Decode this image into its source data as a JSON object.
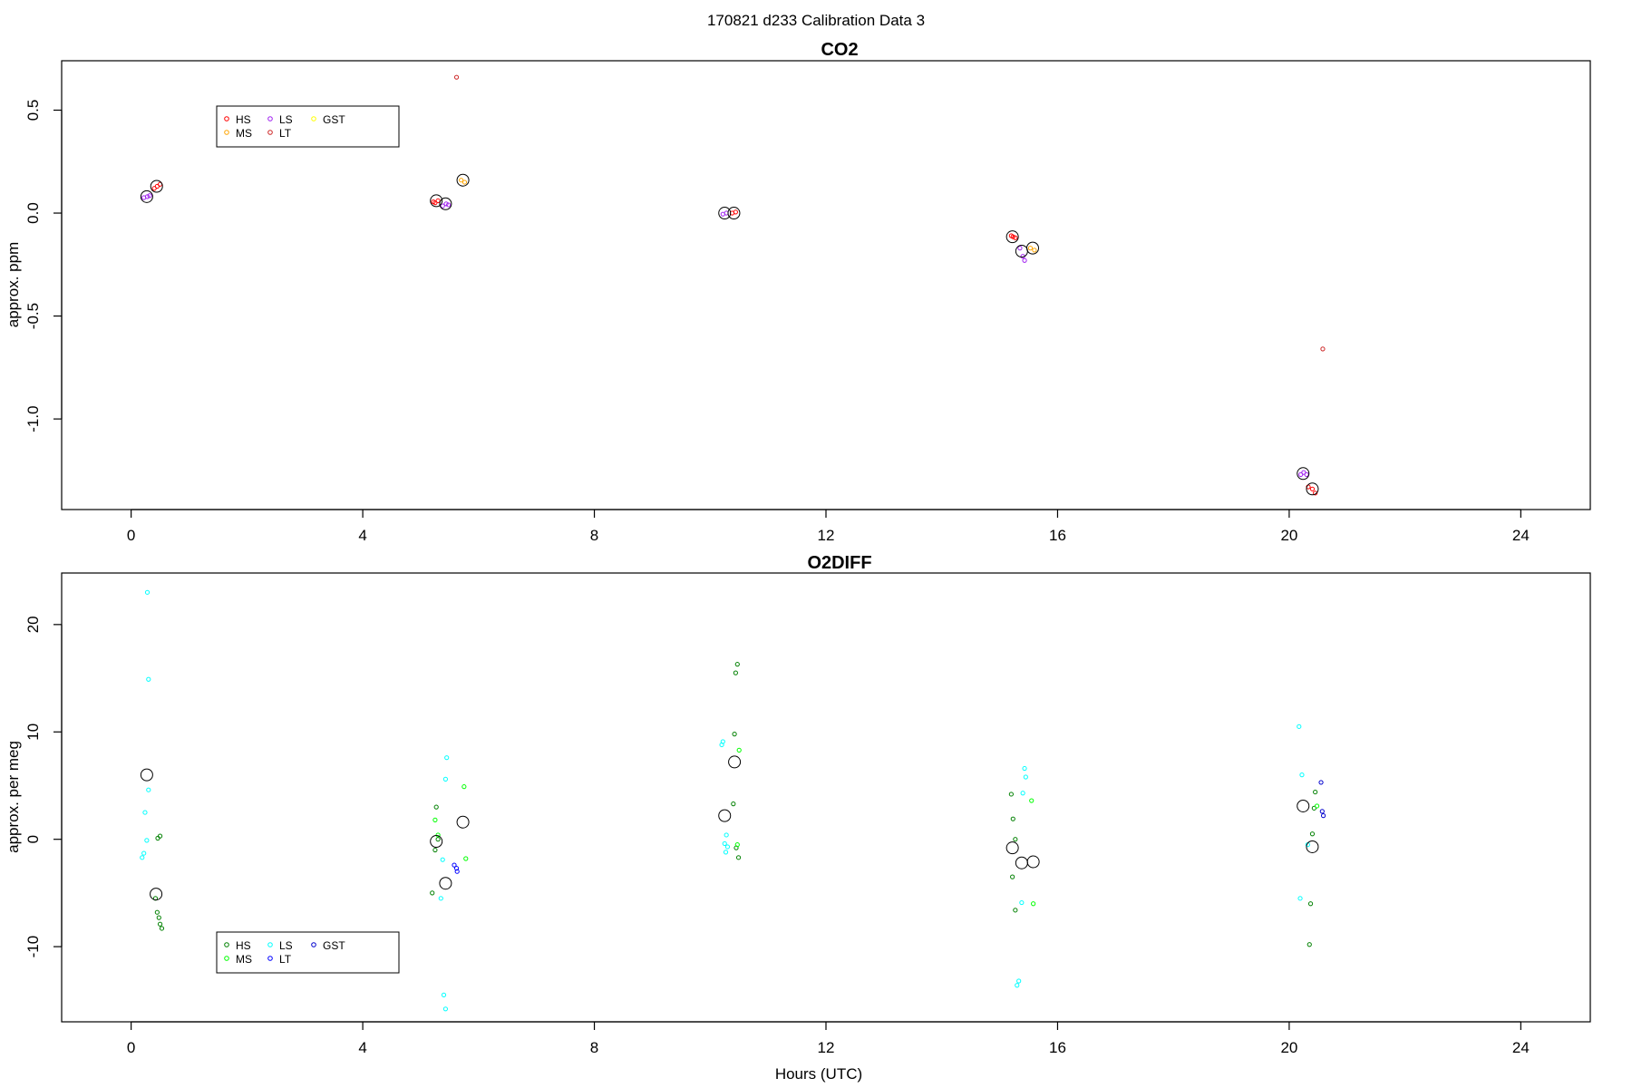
{
  "figure_title": "170821   d233   Calibration Data 3",
  "chart_data": [
    {
      "type": "scatter",
      "title": "CO2",
      "xlabel": "",
      "ylabel": "approx. ppm",
      "xlim": [
        -1.2,
        25.2
      ],
      "ylim": [
        -1.44,
        0.74
      ],
      "xticks": [
        0,
        4,
        8,
        12,
        16,
        20,
        24
      ],
      "yticks": [
        -1.0,
        -0.5,
        0.0,
        0.5
      ],
      "ytick_labels": [
        "-1.0",
        "-0.5",
        "0.0",
        "0.5"
      ],
      "grid": false,
      "legend": {
        "placement": "top-left",
        "entries": [
          {
            "name": "HS",
            "color": "#ff0000"
          },
          {
            "name": "MS",
            "color": "#ffa500"
          },
          {
            "name": "LS",
            "color": "#a020f0"
          },
          {
            "name": "LT",
            "color": "#cd2626"
          },
          {
            "name": "GST",
            "color": "#ffff00"
          }
        ]
      },
      "series": [
        {
          "name": "HS",
          "color": "#ff0000",
          "points": [
            [
              0.4,
              0.12
            ],
            [
              0.45,
              0.13
            ],
            [
              0.5,
              0.14
            ],
            [
              5.22,
              0.055
            ],
            [
              5.3,
              0.06
            ],
            [
              5.25,
              0.05
            ],
            [
              10.38,
              0.0
            ],
            [
              10.44,
              0.005
            ],
            [
              15.2,
              -0.11
            ],
            [
              15.27,
              -0.12
            ],
            [
              15.23,
              -0.115
            ],
            [
              20.33,
              -1.33
            ],
            [
              20.4,
              -1.34
            ],
            [
              20.45,
              -1.36
            ]
          ]
        },
        {
          "name": "MS",
          "color": "#ffa500",
          "points": [
            [
              5.7,
              0.16
            ],
            [
              5.76,
              0.15
            ],
            [
              15.53,
              -0.17
            ],
            [
              15.6,
              -0.18
            ]
          ]
        },
        {
          "name": "LS",
          "color": "#a020f0",
          "points": [
            [
              0.22,
              0.075
            ],
            [
              0.28,
              0.08
            ],
            [
              0.32,
              0.085
            ],
            [
              5.38,
              0.035
            ],
            [
              5.44,
              0.045
            ],
            [
              5.48,
              0.04
            ],
            [
              10.22,
              -0.005
            ],
            [
              10.28,
              0.0
            ],
            [
              15.35,
              -0.17
            ],
            [
              15.4,
              -0.21
            ],
            [
              15.43,
              -0.23
            ],
            [
              20.2,
              -1.27
            ],
            [
              20.25,
              -1.26
            ],
            [
              20.3,
              -1.27
            ]
          ]
        },
        {
          "name": "LT",
          "color": "#cd2626",
          "points": [
            [
              5.62,
              0.66
            ],
            [
              20.58,
              -0.66
            ]
          ]
        },
        {
          "name": "GST",
          "color": "#ffff00",
          "points": []
        },
        {
          "name": "",
          "color": "#000000",
          "marker": "large-circle",
          "points": [
            [
              0.27,
              0.08
            ],
            [
              0.44,
              0.13
            ],
            [
              5.27,
              0.06
            ],
            [
              5.43,
              0.045
            ],
            [
              5.73,
              0.16
            ],
            [
              10.25,
              0.0
            ],
            [
              10.41,
              0.0
            ],
            [
              15.22,
              -0.115
            ],
            [
              15.38,
              -0.185
            ],
            [
              15.57,
              -0.17
            ],
            [
              20.24,
              -1.265
            ],
            [
              20.4,
              -1.34
            ]
          ]
        }
      ]
    },
    {
      "type": "scatter",
      "title": "O2DIFF",
      "xlabel": "Hours (UTC)",
      "ylabel": "approx. per meg",
      "xlim": [
        -1.2,
        25.2
      ],
      "ylim": [
        -17.0,
        24.8
      ],
      "xticks": [
        0,
        4,
        8,
        12,
        16,
        20,
        24
      ],
      "yticks": [
        -10,
        0,
        10,
        20
      ],
      "ytick_labels": [
        "-10",
        "0",
        "10",
        "20"
      ],
      "grid": false,
      "legend": {
        "placement": "bottom-left",
        "entries": [
          {
            "name": "HS",
            "color": "#008000"
          },
          {
            "name": "MS",
            "color": "#00ff00"
          },
          {
            "name": "LS",
            "color": "#00ffff"
          },
          {
            "name": "LT",
            "color": "#0000ff"
          },
          {
            "name": "GST",
            "color": "#0000cd"
          }
        ]
      },
      "series": [
        {
          "name": "HS",
          "color": "#008000",
          "points": [
            [
              0.42,
              -5.5
            ],
            [
              0.45,
              -6.8
            ],
            [
              0.48,
              -7.3
            ],
            [
              0.5,
              -7.9
            ],
            [
              0.53,
              -8.3
            ],
            [
              0.46,
              0.1
            ],
            [
              0.5,
              0.3
            ],
            [
              5.2,
              -5.0
            ],
            [
              5.27,
              3.0
            ],
            [
              5.3,
              0.0
            ],
            [
              5.25,
              -1.0
            ],
            [
              10.4,
              3.3
            ],
            [
              10.42,
              9.8
            ],
            [
              10.44,
              15.5
            ],
            [
              10.47,
              16.3
            ],
            [
              10.45,
              -0.8
            ],
            [
              10.49,
              -1.7
            ],
            [
              15.2,
              4.2
            ],
            [
              15.23,
              1.9
            ],
            [
              15.27,
              0.0
            ],
            [
              15.22,
              -3.5
            ],
            [
              15.27,
              -6.6
            ],
            [
              20.4,
              0.5
            ],
            [
              20.43,
              2.9
            ],
            [
              20.45,
              4.4
            ],
            [
              20.37,
              -6.0
            ],
            [
              20.35,
              -9.8
            ]
          ]
        },
        {
          "name": "MS",
          "color": "#00ff00",
          "points": [
            [
              5.25,
              1.8
            ],
            [
              5.3,
              0.4
            ],
            [
              5.75,
              4.9
            ],
            [
              5.78,
              -1.8
            ],
            [
              10.5,
              8.3
            ],
            [
              10.47,
              -0.5
            ],
            [
              15.55,
              3.6
            ],
            [
              15.58,
              -6.0
            ],
            [
              20.48,
              3.1
            ]
          ]
        },
        {
          "name": "LS",
          "color": "#00ffff",
          "points": [
            [
              0.28,
              23.0
            ],
            [
              0.3,
              14.9
            ],
            [
              0.3,
              4.6
            ],
            [
              0.24,
              2.5
            ],
            [
              0.27,
              -0.1
            ],
            [
              0.22,
              -1.3
            ],
            [
              0.19,
              -1.7
            ],
            [
              5.45,
              7.6
            ],
            [
              5.43,
              5.6
            ],
            [
              5.38,
              -1.9
            ],
            [
              5.35,
              -5.5
            ],
            [
              5.4,
              -14.5
            ],
            [
              5.43,
              -15.8
            ],
            [
              10.22,
              9.1
            ],
            [
              10.2,
              8.8
            ],
            [
              10.28,
              0.4
            ],
            [
              10.25,
              -0.4
            ],
            [
              10.3,
              -0.7
            ],
            [
              10.27,
              -1.2
            ],
            [
              15.43,
              6.6
            ],
            [
              15.45,
              5.8
            ],
            [
              15.4,
              4.3
            ],
            [
              15.38,
              -5.9
            ],
            [
              15.33,
              -13.2
            ],
            [
              15.3,
              -13.6
            ],
            [
              20.17,
              10.5
            ],
            [
              20.22,
              6.0
            ],
            [
              20.19,
              -5.5
            ],
            [
              20.32,
              -0.5
            ]
          ]
        },
        {
          "name": "LT",
          "color": "#0000ff",
          "points": [
            [
              5.58,
              -2.4
            ],
            [
              5.62,
              -2.7
            ],
            [
              5.63,
              -3.0
            ]
          ]
        },
        {
          "name": "GST",
          "color": "#0000cd",
          "points": [
            [
              20.55,
              5.3
            ],
            [
              20.57,
              2.6
            ],
            [
              20.59,
              2.2
            ]
          ]
        },
        {
          "name": "",
          "color": "#000000",
          "marker": "large-circle",
          "points": [
            [
              0.27,
              6.0
            ],
            [
              0.43,
              -5.1
            ],
            [
              5.27,
              -0.2
            ],
            [
              5.43,
              -4.1
            ],
            [
              5.73,
              1.6
            ],
            [
              10.25,
              2.2
            ],
            [
              10.42,
              7.2
            ],
            [
              15.22,
              -0.8
            ],
            [
              15.38,
              -2.2
            ],
            [
              15.58,
              -2.1
            ],
            [
              20.24,
              3.1
            ],
            [
              20.4,
              -0.7
            ]
          ]
        }
      ]
    }
  ]
}
